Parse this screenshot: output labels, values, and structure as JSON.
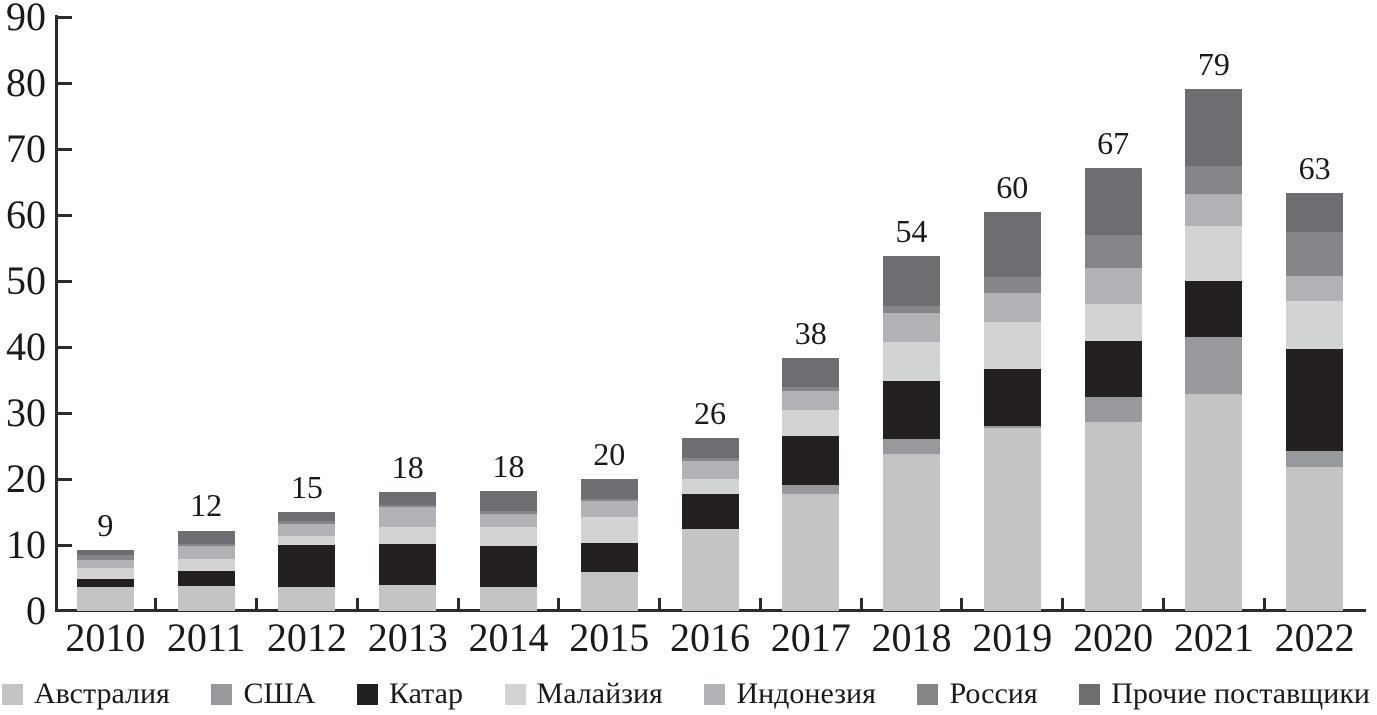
{
  "chart_data": {
    "type": "bar",
    "subtype": "stacked-vertical",
    "title": "",
    "xlabel": "",
    "ylabel": "",
    "categories": [
      "2010",
      "2011",
      "2012",
      "2013",
      "2014",
      "2015",
      "2016",
      "2017",
      "2018",
      "2019",
      "2020",
      "2021",
      "2022"
    ],
    "bar_total_labels": [
      "9",
      "12",
      "15",
      "18",
      "18",
      "20",
      "26",
      "38",
      "54",
      "60",
      "67",
      "79",
      "63"
    ],
    "series": [
      {
        "name": "Австралия",
        "color": "#c3c4c6",
        "values": [
          3.6,
          3.8,
          3.7,
          3.9,
          3.7,
          5.9,
          12.4,
          17.8,
          23.8,
          27.8,
          28.7,
          32.9,
          21.8
        ]
      },
      {
        "name": "США",
        "color": "#97999c",
        "values": [
          0,
          0,
          0,
          0,
          0,
          0,
          0,
          1.3,
          2.2,
          0.3,
          3.7,
          8.6,
          2.5
        ]
      },
      {
        "name": "Катар",
        "color": "#241f21",
        "values": [
          1.2,
          2.3,
          6.3,
          6.3,
          6.1,
          4.4,
          5.3,
          7.4,
          8.9,
          8.5,
          8.5,
          8.5,
          15.4
        ]
      },
      {
        "name": "Малайзия",
        "color": "#d2d3d5",
        "values": [
          1.7,
          1.8,
          1.3,
          2.6,
          2.9,
          4.0,
          2.3,
          4.0,
          5.8,
          7.2,
          5.6,
          8.3,
          7.3
        ]
      },
      {
        "name": "Индонезия",
        "color": "#b0b2b5",
        "values": [
          1.3,
          2.0,
          1.9,
          2.9,
          2.0,
          2.4,
          2.8,
          2.9,
          4.4,
          4.4,
          5.5,
          4.9,
          3.7
        ]
      },
      {
        "name": "Россия",
        "color": "#84868a",
        "values": [
          0.7,
          0.3,
          0.4,
          0.3,
          0.4,
          0.2,
          0.4,
          0.6,
          1.1,
          2.4,
          4.9,
          4.2,
          6.7
        ]
      },
      {
        "name": "Прочие поставщики",
        "color": "#6d6e71",
        "values": [
          0.7,
          2.0,
          1.4,
          2.0,
          3.1,
          3.1,
          3.0,
          4.3,
          7.6,
          9.8,
          10.2,
          11.7,
          6.0
        ]
      }
    ],
    "ylim": [
      0,
      90
    ],
    "yticks": [
      0,
      10,
      20,
      30,
      40,
      50,
      60,
      70,
      80,
      90
    ],
    "grid": false,
    "legend_position": "bottom",
    "axis_color": "#2b2b2b",
    "text_color": "#1a1a1a",
    "background_color": "#ffffff"
  }
}
